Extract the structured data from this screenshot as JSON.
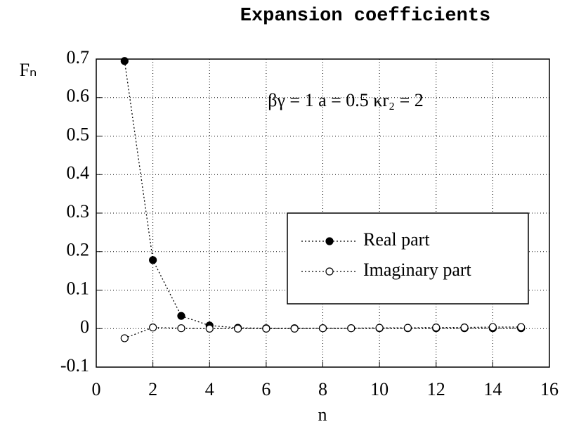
{
  "chart_data": {
    "type": "line",
    "title": "Expansion  coefficients",
    "x_label": "n",
    "y_label": "Fₙ",
    "annotation": "βγ = 1   a = 0.5   κr₂ = 2",
    "x": [
      1,
      2,
      3,
      4,
      5,
      6,
      7,
      8,
      9,
      10,
      11,
      12,
      13,
      14,
      15
    ],
    "series": [
      {
        "name": "Real part",
        "color": "#000000",
        "marker": "filled",
        "values": [
          0.695,
          0.178,
          0.033,
          0.008,
          0.002,
          0.001,
          0.001,
          0.001,
          0.001,
          0.001,
          0.001,
          0.001,
          0.001,
          0.001,
          0.001
        ]
      },
      {
        "name": "Imaginary part",
        "color": "#000000",
        "marker": "open",
        "values": [
          -0.025,
          0.003,
          0.001,
          0.0,
          0.0,
          0.0,
          0.0,
          0.001,
          0.001,
          0.002,
          0.002,
          0.003,
          0.003,
          0.004,
          0.004
        ]
      }
    ],
    "xlim": [
      0,
      16
    ],
    "xticks": [
      0,
      2,
      4,
      6,
      8,
      10,
      12,
      14,
      16
    ],
    "ylim": [
      -0.1,
      0.7
    ],
    "yticks": [
      -0.1,
      0,
      0.1,
      0.2,
      0.3,
      0.4,
      0.5,
      0.6,
      0.7
    ],
    "grid": true,
    "legend": "lower right"
  }
}
